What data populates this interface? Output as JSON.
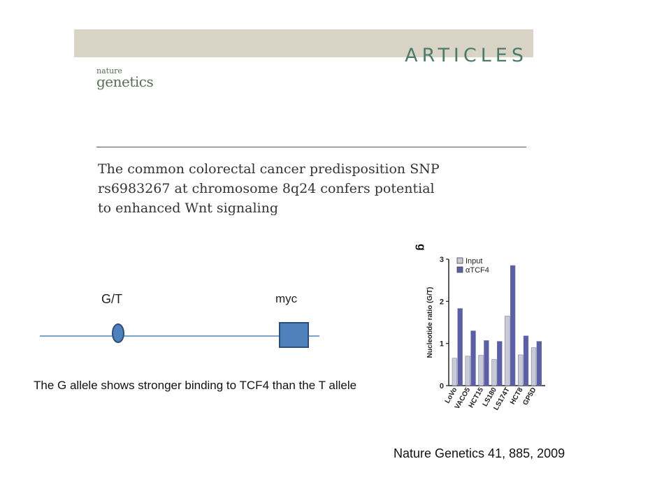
{
  "header": {
    "section": "ARTICLES",
    "journal_line1": "nature",
    "journal_line2": "genetics"
  },
  "paper_title": [
    "The common colorectal cancer predisposition SNP",
    "rs6983267 at chromosome 8q24 confers potential",
    "to enhanced Wnt signaling"
  ],
  "diagram": {
    "snp_label": "G/T",
    "gene_label": "myc",
    "line_color": "#4f81bd",
    "marker_color": "#4f81bd",
    "marker_border": "#2d4e7a"
  },
  "caption": "The G allele shows stronger binding to TCF4 than the T allele",
  "reference": "Nature Genetics 41, 885, 2009",
  "chart_data": {
    "type": "bar",
    "panel_label": "g",
    "ylabel": "Nucleotide ratio (G/T)",
    "ylim": [
      0,
      3
    ],
    "yticks": [
      "0",
      "1",
      "2",
      "3"
    ],
    "categories": [
      "LoVo",
      "VACO5",
      "HCT15",
      "LS180",
      "LS174T",
      "HCT8",
      "GP5D"
    ],
    "series": [
      {
        "name": "Input",
        "color": "#c8cad8",
        "values": [
          0.65,
          0.7,
          0.72,
          0.62,
          1.65,
          0.73,
          0.9
        ]
      },
      {
        "name": "αTCF4",
        "color": "#5b5fa8",
        "values": [
          1.83,
          1.3,
          1.07,
          1.05,
          2.85,
          1.18,
          1.05
        ]
      }
    ],
    "legend_position": "top-left",
    "grid": false
  }
}
